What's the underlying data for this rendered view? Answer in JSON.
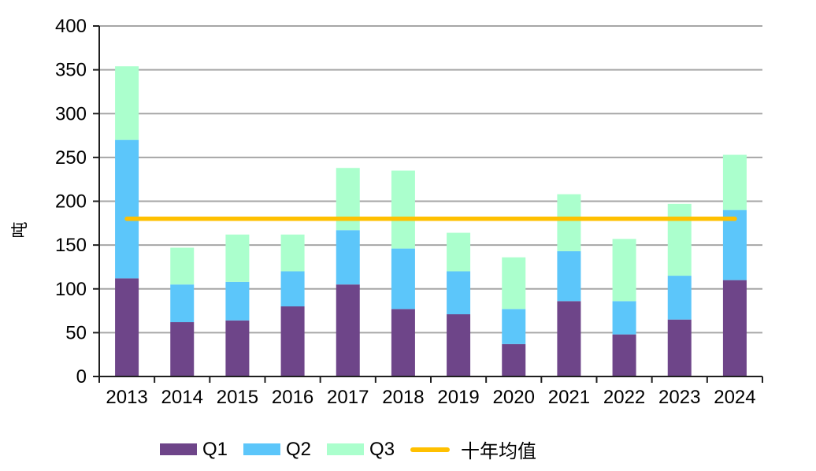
{
  "chart_data": {
    "type": "bar",
    "stacked": true,
    "title": "",
    "ylabel": "吨",
    "xlabel": "",
    "ylim": [
      0,
      400
    ],
    "ytick_step": 50,
    "ytick_labels": [
      "0",
      "50",
      "100",
      "150",
      "200",
      "250",
      "300",
      "350",
      "400"
    ],
    "categories": [
      "2013",
      "2014",
      "2015",
      "2016",
      "2017",
      "2018",
      "2019",
      "2020",
      "2021",
      "2022",
      "2023",
      "2024"
    ],
    "series": [
      {
        "name": "Q1",
        "color": "#6E4589",
        "values": [
          112,
          62,
          64,
          80,
          105,
          77,
          71,
          37,
          86,
          48,
          65,
          110
        ]
      },
      {
        "name": "Q2",
        "color": "#5CC6FA",
        "values": [
          158,
          43,
          44,
          40,
          62,
          69,
          49,
          40,
          57,
          38,
          50,
          80
        ]
      },
      {
        "name": "Q3",
        "color": "#ABFFCD",
        "values": [
          84,
          42,
          54,
          42,
          71,
          89,
          44,
          59,
          65,
          71,
          82,
          63
        ]
      }
    ],
    "totals": [
      354,
      147,
      162,
      162,
      238,
      235,
      164,
      136,
      208,
      157,
      197,
      253
    ],
    "reference_line": {
      "name": "十年均值",
      "value": 180,
      "color": "#FFC000"
    },
    "legend_position": "bottom",
    "grid": true,
    "gridline_color": "#A6A6A6",
    "axis_color": "#1F1F1F",
    "text_color": "#000000",
    "background": "#FFFFFF"
  }
}
